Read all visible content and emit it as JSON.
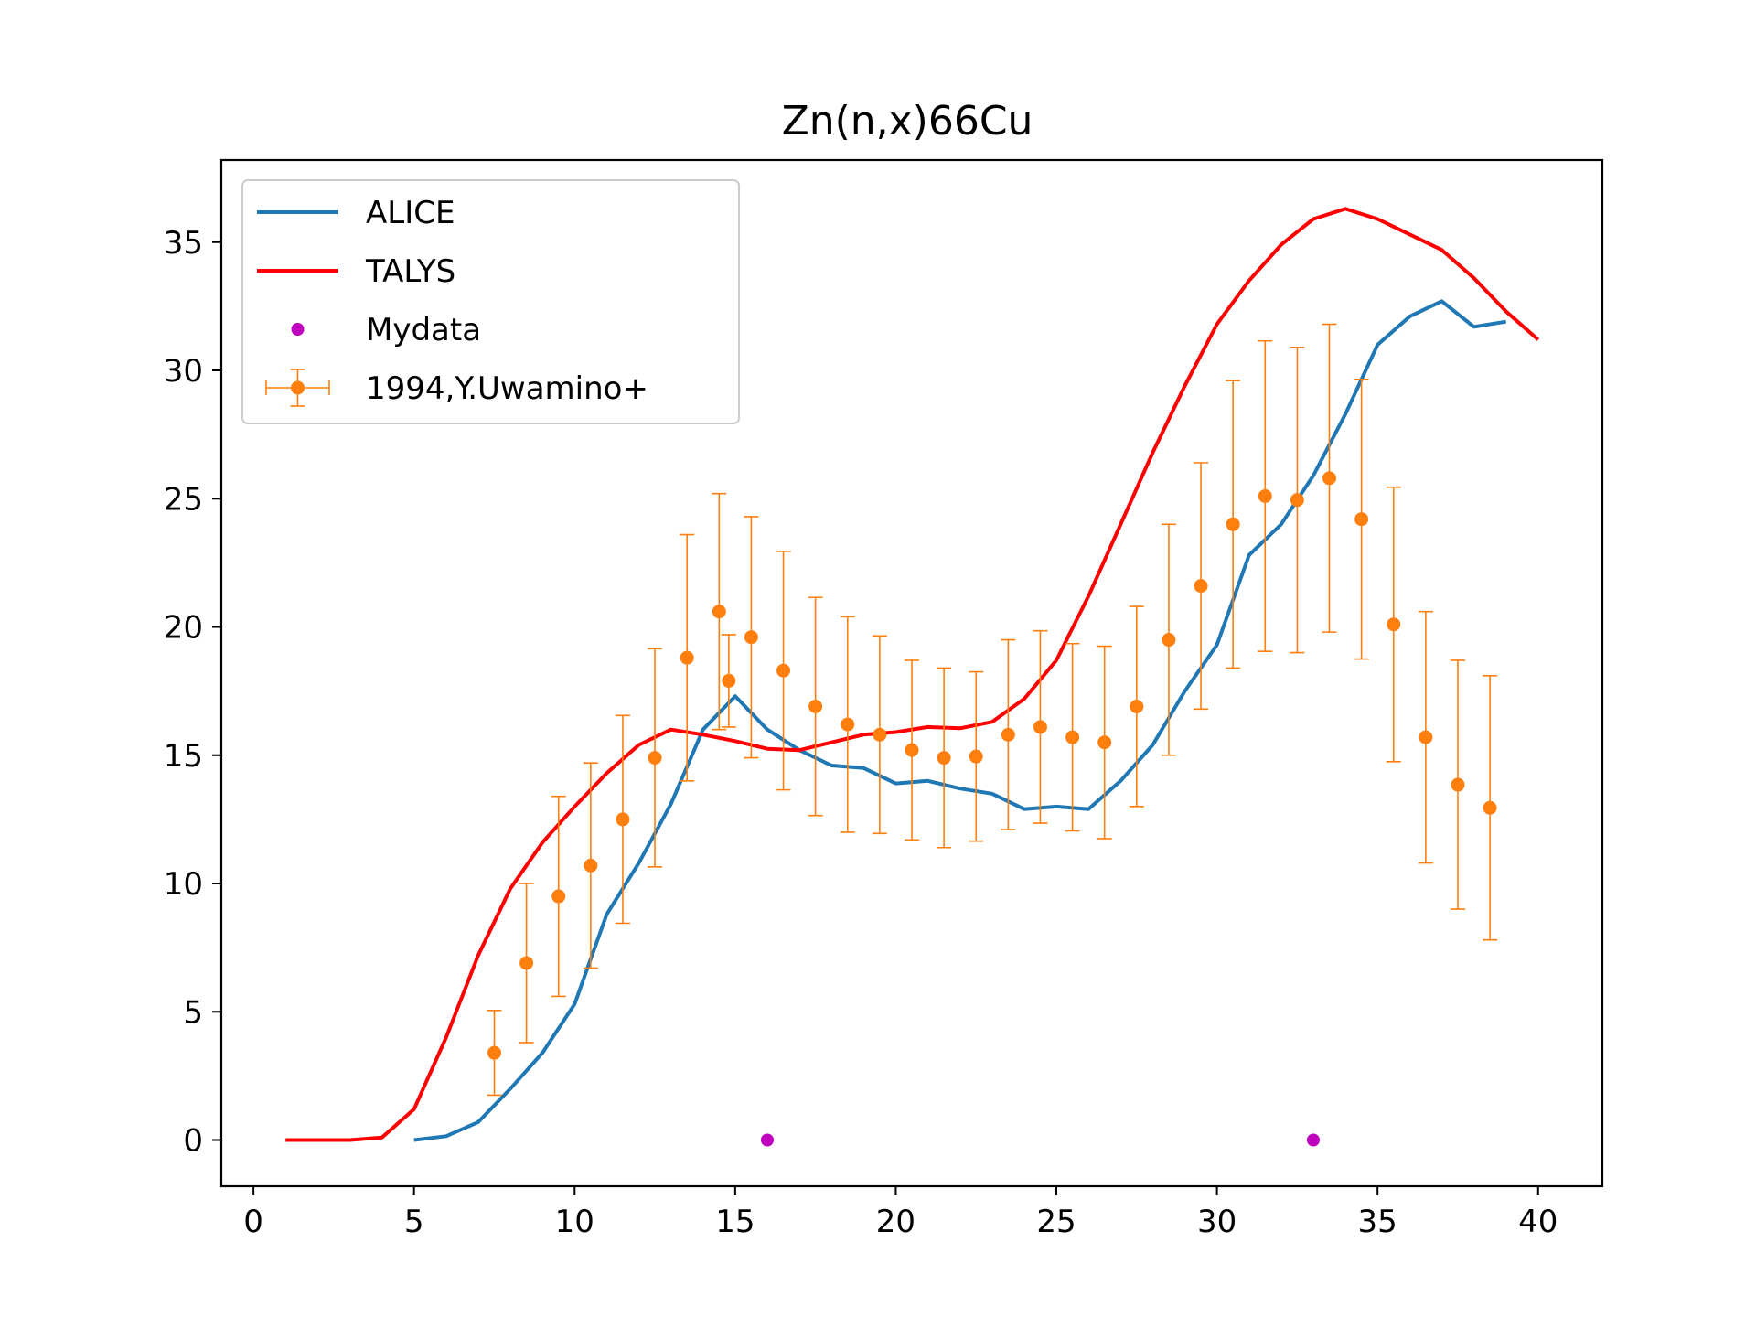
{
  "chart_data": {
    "type": "line",
    "title": "Zn(n,x)66Cu",
    "xlabel": "",
    "ylabel": "",
    "xlim": [
      -1,
      42
    ],
    "ylim": [
      -1.8,
      38.2
    ],
    "xticks": [
      0,
      5,
      10,
      15,
      20,
      25,
      30,
      35,
      40
    ],
    "yticks": [
      0,
      5,
      10,
      15,
      20,
      25,
      30,
      35
    ],
    "grid": false,
    "legend_position": "top-left",
    "series": [
      {
        "name": "ALICE",
        "kind": "line",
        "color": "#1f77b4",
        "x": [
          5,
          6,
          7,
          8,
          9,
          10,
          11,
          12,
          13,
          14,
          15,
          16,
          17,
          18,
          19,
          20,
          21,
          22,
          23,
          24,
          25,
          26,
          27,
          28,
          29,
          30,
          31,
          32,
          33,
          34,
          35,
          36,
          37,
          38,
          39
        ],
        "y": [
          0.0,
          0.15,
          0.7,
          2.0,
          3.4,
          5.3,
          8.8,
          10.8,
          13.1,
          16.0,
          17.3,
          16.0,
          15.2,
          14.6,
          14.5,
          13.9,
          14.0,
          13.7,
          13.5,
          12.9,
          13.0,
          12.9,
          14.0,
          15.4,
          17.5,
          19.3,
          22.8,
          24.0,
          25.9,
          28.3,
          31.0,
          32.1,
          32.7,
          31.7,
          31.9
        ]
      },
      {
        "name": "TALYS",
        "kind": "line",
        "color": "#ff0000",
        "x": [
          1,
          2,
          3,
          4,
          5,
          6,
          7,
          8,
          9,
          10,
          11,
          12,
          13,
          14,
          15,
          16,
          17,
          18,
          19,
          20,
          21,
          22,
          23,
          24,
          25,
          26,
          27,
          28,
          29,
          30,
          31,
          32,
          33,
          34,
          35,
          36,
          37,
          38,
          39,
          40
        ],
        "y": [
          0.0,
          0.0,
          0.0,
          0.1,
          1.2,
          4.0,
          7.2,
          9.8,
          11.6,
          13.0,
          14.3,
          15.4,
          16.0,
          15.8,
          15.55,
          15.25,
          15.2,
          15.5,
          15.8,
          15.9,
          16.1,
          16.05,
          16.3,
          17.2,
          18.7,
          21.2,
          24.0,
          26.8,
          29.4,
          31.8,
          33.5,
          34.9,
          35.9,
          36.3,
          35.9,
          35.3,
          34.7,
          33.6,
          32.3,
          31.2
        ]
      },
      {
        "name": "Mydata",
        "kind": "scatter",
        "color": "#bf00bf",
        "x": [
          16,
          33
        ],
        "y": [
          0,
          0
        ]
      },
      {
        "name": "1994,Y.Uwamino+",
        "kind": "errorbar",
        "color": "#ff7f0e",
        "x": [
          7.5,
          8.5,
          9.5,
          10.5,
          11.5,
          12.5,
          13.5,
          14.5,
          14.8,
          15.5,
          16.5,
          17.5,
          18.5,
          19.5,
          20.5,
          21.5,
          22.5,
          23.5,
          24.5,
          25.5,
          26.5,
          27.5,
          28.5,
          29.5,
          30.5,
          31.5,
          32.5,
          33.5,
          34.5,
          35.5,
          36.5,
          37.5,
          38.5
        ],
        "y": [
          3.4,
          6.9,
          9.5,
          10.7,
          12.5,
          14.9,
          18.8,
          20.6,
          17.9,
          19.6,
          18.3,
          16.9,
          16.2,
          15.8,
          15.2,
          14.9,
          14.95,
          15.8,
          16.1,
          15.7,
          15.5,
          16.9,
          19.5,
          21.6,
          24.0,
          25.1,
          24.95,
          25.8,
          24.2,
          20.1,
          15.7,
          13.85,
          12.95
        ],
        "yerr": [
          1.65,
          3.1,
          3.9,
          4.0,
          4.05,
          4.25,
          4.8,
          4.6,
          1.8,
          4.7,
          4.65,
          4.25,
          4.2,
          3.85,
          3.5,
          3.5,
          3.3,
          3.7,
          3.75,
          3.65,
          3.75,
          3.9,
          4.5,
          4.8,
          5.6,
          6.05,
          5.95,
          6.0,
          5.45,
          5.35,
          4.9,
          4.85,
          5.15
        ]
      }
    ]
  }
}
